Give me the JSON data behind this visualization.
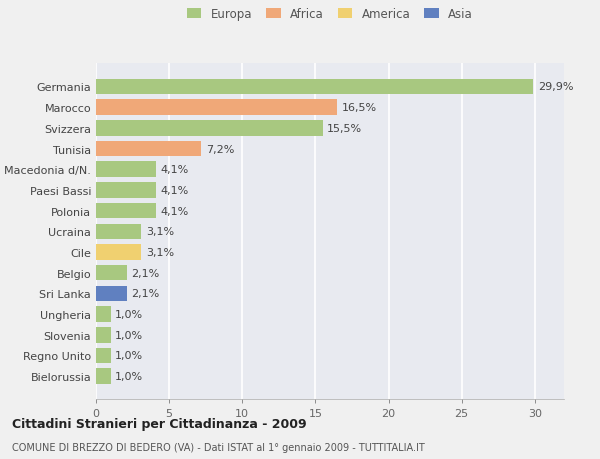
{
  "categories": [
    "Germania",
    "Marocco",
    "Svizzera",
    "Tunisia",
    "Macedonia d/N.",
    "Paesi Bassi",
    "Polonia",
    "Ucraina",
    "Cile",
    "Belgio",
    "Sri Lanka",
    "Ungheria",
    "Slovenia",
    "Regno Unito",
    "Bielorussia"
  ],
  "values": [
    29.9,
    16.5,
    15.5,
    7.2,
    4.1,
    4.1,
    4.1,
    3.1,
    3.1,
    2.1,
    2.1,
    1.0,
    1.0,
    1.0,
    1.0
  ],
  "labels": [
    "29,9%",
    "16,5%",
    "15,5%",
    "7,2%",
    "4,1%",
    "4,1%",
    "4,1%",
    "3,1%",
    "3,1%",
    "2,1%",
    "2,1%",
    "1,0%",
    "1,0%",
    "1,0%",
    "1,0%"
  ],
  "colors": [
    "#a8c880",
    "#f0a878",
    "#a8c880",
    "#f0a878",
    "#a8c880",
    "#a8c880",
    "#a8c880",
    "#a8c880",
    "#f0d070",
    "#a8c880",
    "#6080c0",
    "#a8c880",
    "#a8c880",
    "#a8c880",
    "#a8c880"
  ],
  "legend_labels": [
    "Europa",
    "Africa",
    "America",
    "Asia"
  ],
  "legend_colors": [
    "#a8c880",
    "#f0a878",
    "#f0d070",
    "#6080c0"
  ],
  "title": "Cittadini Stranieri per Cittadinanza - 2009",
  "subtitle": "COMUNE DI BREZZO DI BEDERO (VA) - Dati ISTAT al 1° gennaio 2009 - TUTTITALIA.IT",
  "xlim": [
    0,
    32
  ],
  "xticks": [
    0,
    5,
    10,
    15,
    20,
    25,
    30
  ],
  "background_color": "#f0f0f0",
  "plot_bg_color": "#e8eaf0",
  "grid_color": "#ffffff",
  "bar_height": 0.75,
  "label_fontsize": 8,
  "ytick_fontsize": 8,
  "xtick_fontsize": 8
}
